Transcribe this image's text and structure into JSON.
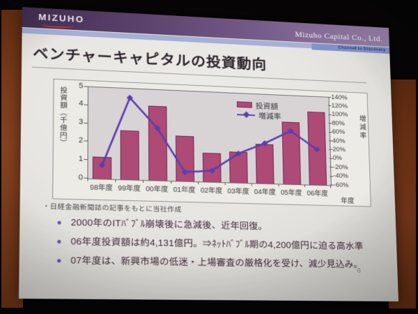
{
  "header": {
    "logo_text": "MIZUHO",
    "company_name": "Mizuho Capital Co., Ltd.",
    "tagline": "Channel to Discovery"
  },
  "slide": {
    "title": "ベンチャーキャピタルの投資動向",
    "footnote": "・日経金融新聞誌の記事をもとに当社作成",
    "bullets": [
      "2000年のITﾊﾞﾌﾞﾙ崩壊後に急減後、近年回復。",
      "06年度投資額は約4,131億円。⇒ﾈｯﾄﾊﾞﾌﾞﾙ期の4,200億円に迫る高水準",
      "07年度は、新興市場の低迷・上場審査の厳格化を受け、減少見込み。"
    ],
    "page_number": "6"
  },
  "chart_data": {
    "type": "bar",
    "subtype": "combo-bar-line-dual-axis",
    "categories": [
      "98年度",
      "99年度",
      "00年度",
      "01年度",
      "02年度",
      "03年度",
      "04年度",
      "05年度",
      "06年度"
    ],
    "series": [
      {
        "name": "投資額",
        "kind": "bar",
        "axis": "left",
        "color": "#ad4a75",
        "border_color": "#75294f",
        "values": [
          1.2,
          2.7,
          4.1,
          2.5,
          1.6,
          1.7,
          2.2,
          3.5,
          4.13
        ]
      },
      {
        "name": "増減率",
        "kind": "line",
        "axis": "right",
        "color": "#5b3db0",
        "marker": "diamond",
        "values": [
          -30,
          120,
          55,
          -40,
          -35,
          5,
          30,
          60,
          20
        ]
      }
    ],
    "left_axis": {
      "title": "投資額（千億円）",
      "min": 0,
      "max": 5,
      "ticks": [
        5,
        4,
        3,
        2,
        1,
        0
      ]
    },
    "right_axis": {
      "title": "増減率",
      "min": -60,
      "max": 140,
      "ticks": [
        "140%",
        "120%",
        "100%",
        "80%",
        "60%",
        "40%",
        "20%",
        "0%",
        "-20%",
        "-40%",
        "-60%"
      ]
    },
    "x_axis_title": "年度",
    "legend_position": "inside-top-right",
    "grid": false,
    "plot_bg": "#d8d4d6"
  },
  "colors": {
    "header_purple_dark": "#463055",
    "header_purple_light": "#9a85ad",
    "header_subbar_blue": "#a6b0d3",
    "logo_swoosh_red": "#c23b3b",
    "bar_fill": "#ad4a75",
    "line_purple": "#5b3db0",
    "wall_brown": "#7b3a1a",
    "slide_bg": "#e8e6e2"
  }
}
